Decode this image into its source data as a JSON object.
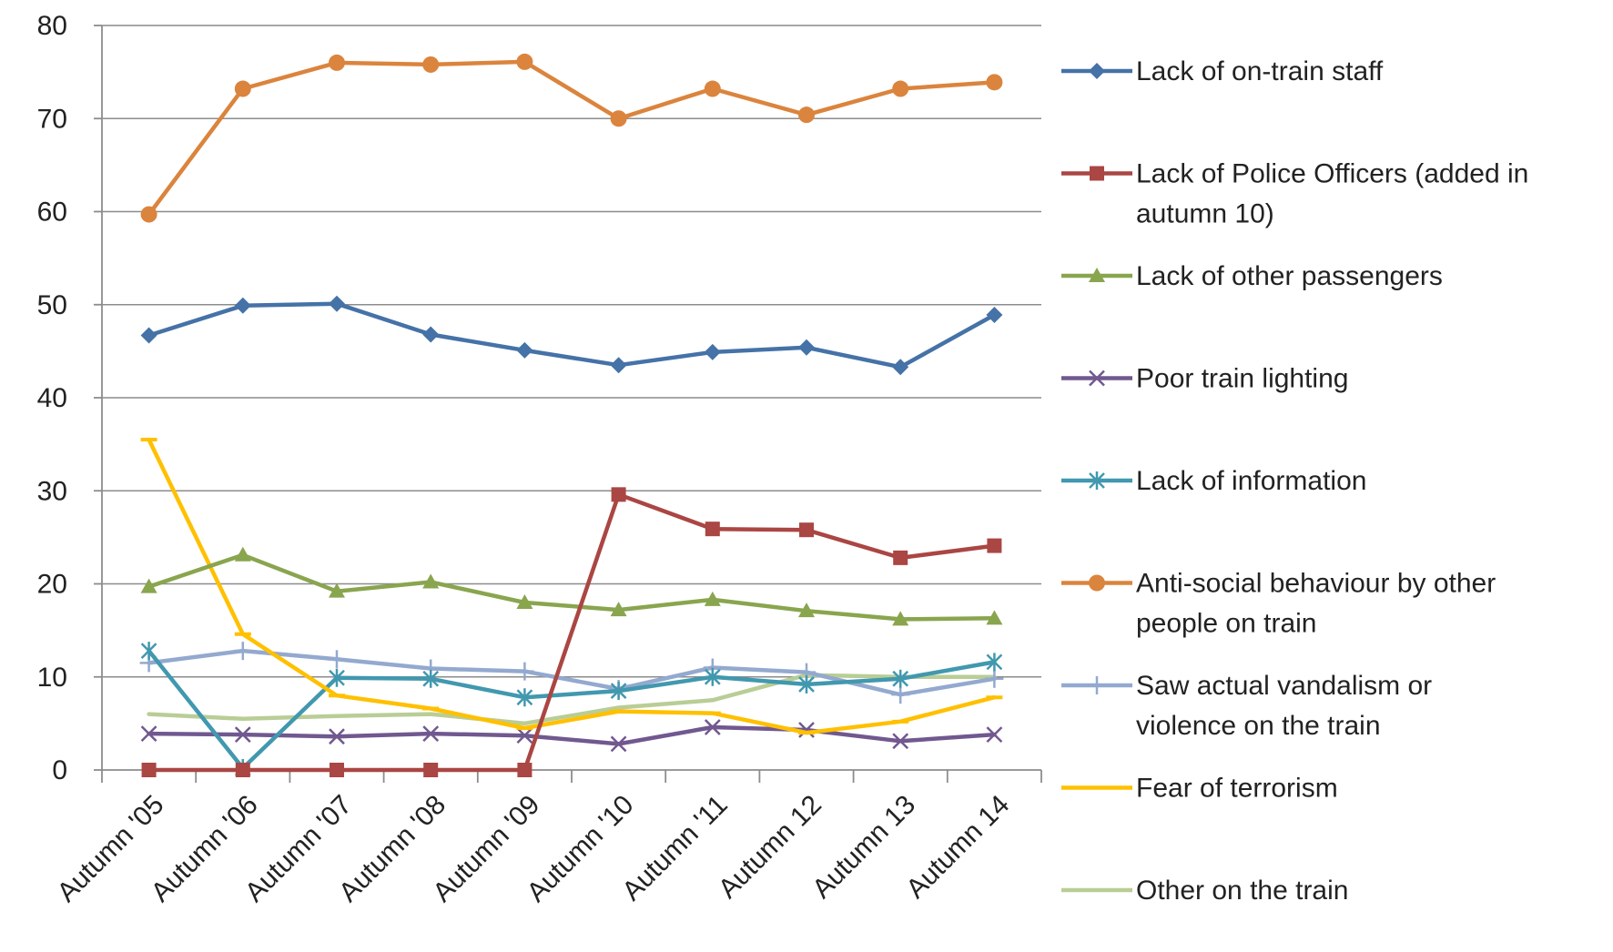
{
  "chart_data": {
    "type": "line",
    "title": "",
    "xlabel": "",
    "ylabel": "",
    "ylim": [
      0,
      80
    ],
    "yticks": [
      0,
      10,
      20,
      30,
      40,
      50,
      60,
      70,
      80
    ],
    "grid": true,
    "legend_position": "right",
    "categories": [
      "Autumn '05",
      "Autumn '06",
      "Autumn '07",
      "Autumn '08",
      "Autumn '09",
      "Autumn '10",
      "Autumn '11",
      "Autumn 12",
      "Autumn 13",
      "Autumn 14"
    ],
    "series": [
      {
        "name": "Lack of on-train staff",
        "color": "#4572A7",
        "marker": "diamond",
        "values": [
          46.7,
          49.9,
          50.1,
          46.8,
          45.1,
          43.5,
          44.9,
          45.4,
          43.3,
          48.9
        ]
      },
      {
        "name": "Lack of Police Officers (added in autumn 10)",
        "color": "#AA4643",
        "marker": "square",
        "values": [
          0,
          0,
          0,
          0,
          0,
          29.6,
          25.9,
          25.8,
          22.8,
          24.1
        ]
      },
      {
        "name": "Lack of other passengers",
        "color": "#89A54E",
        "marker": "triangle",
        "values": [
          19.7,
          23.1,
          19.2,
          20.2,
          18.0,
          17.2,
          18.3,
          17.1,
          16.2,
          16.3
        ]
      },
      {
        "name": "Poor train lighting",
        "color": "#71588F",
        "marker": "x",
        "values": [
          3.9,
          3.8,
          3.6,
          3.9,
          3.7,
          2.8,
          4.6,
          4.3,
          3.1,
          3.8
        ]
      },
      {
        "name": "Lack of information",
        "color": "#4198AF",
        "marker": "star",
        "values": [
          12.8,
          0.2,
          9.9,
          9.8,
          7.8,
          8.5,
          10.0,
          9.2,
          9.8,
          11.6
        ]
      },
      {
        "name": "Anti-social behaviour by other people on train",
        "color": "#DB843D",
        "marker": "circle",
        "values": [
          59.7,
          73.2,
          76.0,
          75.8,
          76.1,
          70.0,
          73.2,
          70.4,
          73.2,
          73.9
        ]
      },
      {
        "name": "Saw actual vandalism or violence on the train",
        "color": "#93A9CF",
        "marker": "plus",
        "values": [
          11.5,
          12.8,
          11.9,
          10.9,
          10.6,
          8.7,
          11.0,
          10.5,
          8.1,
          9.8
        ]
      },
      {
        "name": "Fear of terrorism",
        "color": "#FFC000",
        "marker": "dash",
        "values": [
          35.5,
          14.6,
          8.0,
          6.6,
          4.5,
          6.3,
          6.1,
          4.0,
          5.2,
          7.8
        ]
      },
      {
        "name": "Other on the train",
        "color": "#B9CD96",
        "marker": "none",
        "values": [
          6.0,
          5.5,
          5.8,
          6.0,
          5.0,
          6.7,
          7.5,
          10.2,
          10.0,
          10.0
        ]
      }
    ],
    "legend_lines": [
      [
        "Lack of on-train staff"
      ],
      [
        "Lack of Police Officers (added in",
        "autumn 10)"
      ],
      [
        "Lack of other passengers"
      ],
      [
        "Poor train lighting"
      ],
      [
        "Lack of information"
      ],
      [
        "Anti-social behaviour by other",
        "people on train"
      ],
      [
        "Saw actual vandalism or",
        "violence on the train"
      ],
      [
        "Fear of terrorism"
      ],
      [
        "Other on the train"
      ]
    ]
  }
}
